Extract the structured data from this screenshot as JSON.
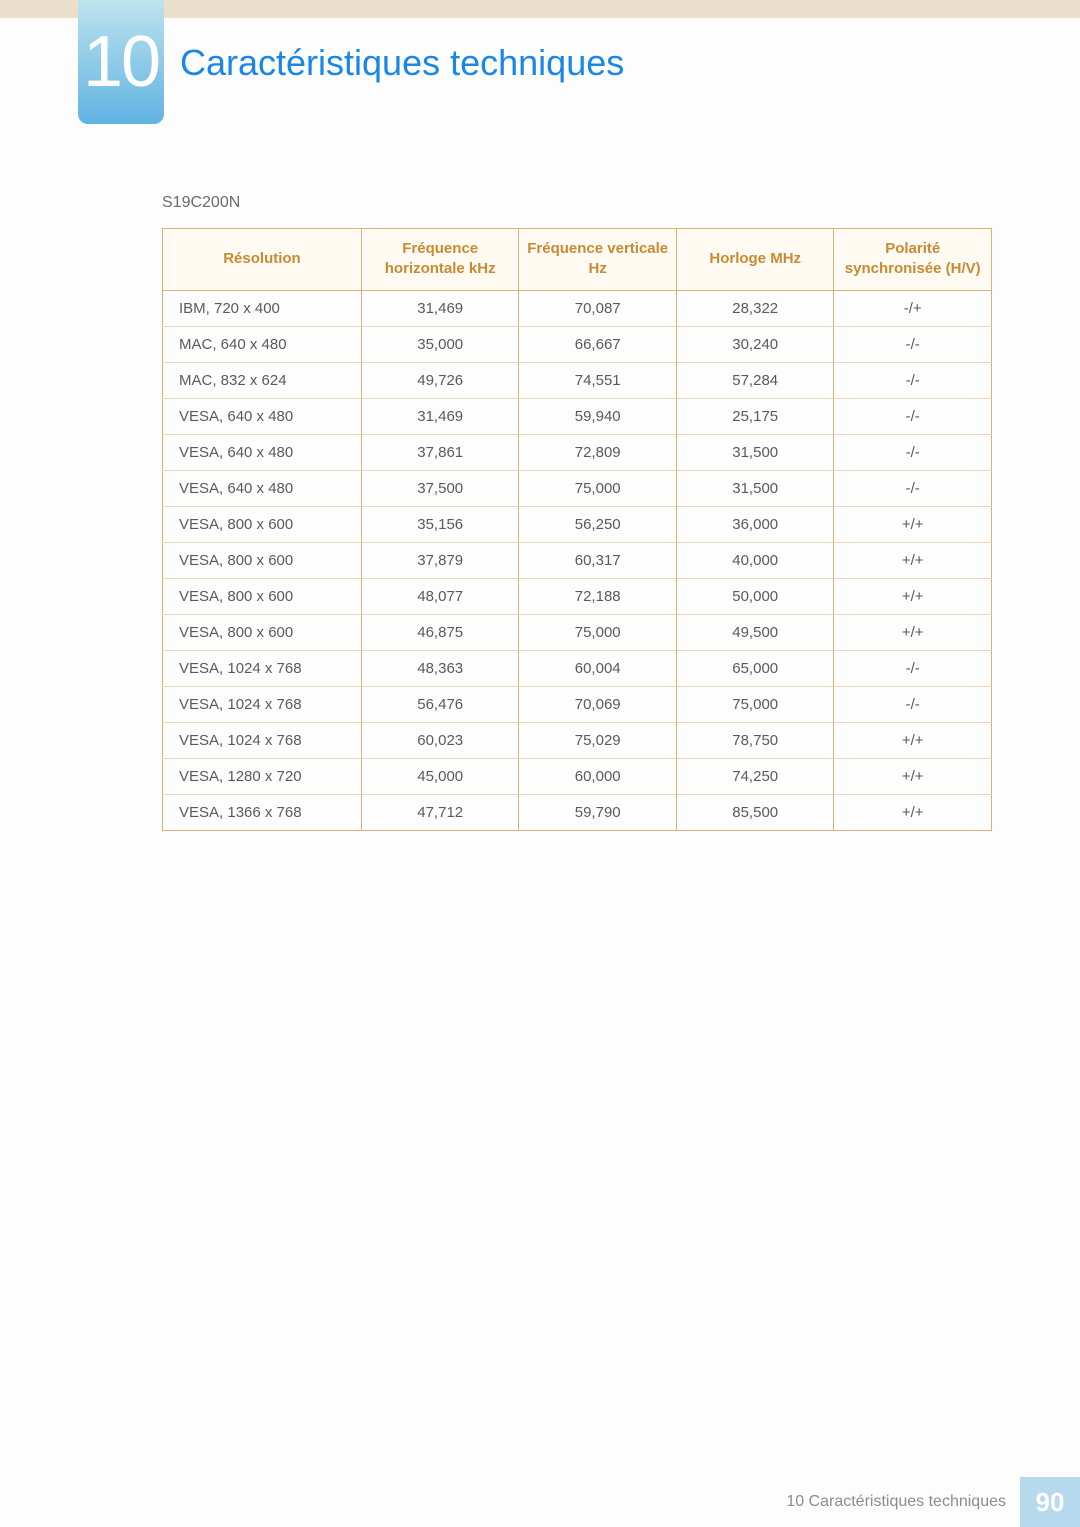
{
  "header": {
    "chapter_number": "10",
    "title": "Caractéristiques techniques"
  },
  "content": {
    "model_label": "S19C200N"
  },
  "table": {
    "columns": [
      "Résolution",
      "Fréquence horizontale kHz",
      "Fréquence verticale Hz",
      "Horloge MHz",
      "Polarité synchronisée (H/V)"
    ],
    "col_widths_pct": [
      24,
      19,
      19,
      19,
      19
    ],
    "header_bg": "#fffaf2",
    "header_text_color": "#c98a34",
    "border_color": "#d8b07a",
    "row_border_color": "#e9d6ba",
    "cell_text_color": "#5a5a5a",
    "rows": [
      [
        "IBM, 720 x 400",
        "31,469",
        "70,087",
        "28,322",
        "-/+"
      ],
      [
        "MAC, 640 x 480",
        "35,000",
        "66,667",
        "30,240",
        "-/-"
      ],
      [
        "MAC, 832 x 624",
        "49,726",
        "74,551",
        "57,284",
        "-/-"
      ],
      [
        "VESA, 640 x 480",
        "31,469",
        "59,940",
        "25,175",
        "-/-"
      ],
      [
        "VESA, 640 x 480",
        "37,861",
        "72,809",
        "31,500",
        "-/-"
      ],
      [
        "VESA, 640 x 480",
        "37,500",
        "75,000",
        "31,500",
        "-/-"
      ],
      [
        "VESA, 800 x 600",
        "35,156",
        "56,250",
        "36,000",
        "+/+"
      ],
      [
        "VESA, 800 x 600",
        "37,879",
        "60,317",
        "40,000",
        "+/+"
      ],
      [
        "VESA, 800 x 600",
        "48,077",
        "72,188",
        "50,000",
        "+/+"
      ],
      [
        "VESA, 800 x 600",
        "46,875",
        "75,000",
        "49,500",
        "+/+"
      ],
      [
        "VESA, 1024 x 768",
        "48,363",
        "60,004",
        "65,000",
        "-/-"
      ],
      [
        "VESA, 1024 x 768",
        "56,476",
        "70,069",
        "75,000",
        "-/-"
      ],
      [
        "VESA, 1024 x 768",
        "60,023",
        "75,029",
        "78,750",
        "+/+"
      ],
      [
        "VESA, 1280 x 720",
        "45,000",
        "60,000",
        "74,250",
        "+/+"
      ],
      [
        "VESA, 1366 x 768",
        "47,712",
        "59,790",
        "85,500",
        "+/+"
      ]
    ]
  },
  "footer": {
    "text": "10 Caractéristiques techniques",
    "page_number": "90",
    "pagebox_bg": "#b6d9ee"
  },
  "colors": {
    "top_stripe": "#e9dfcb",
    "title_color": "#1b87e5",
    "badge_gradient_top": "#bfe3ee",
    "badge_gradient_bottom": "#60b3e2"
  }
}
